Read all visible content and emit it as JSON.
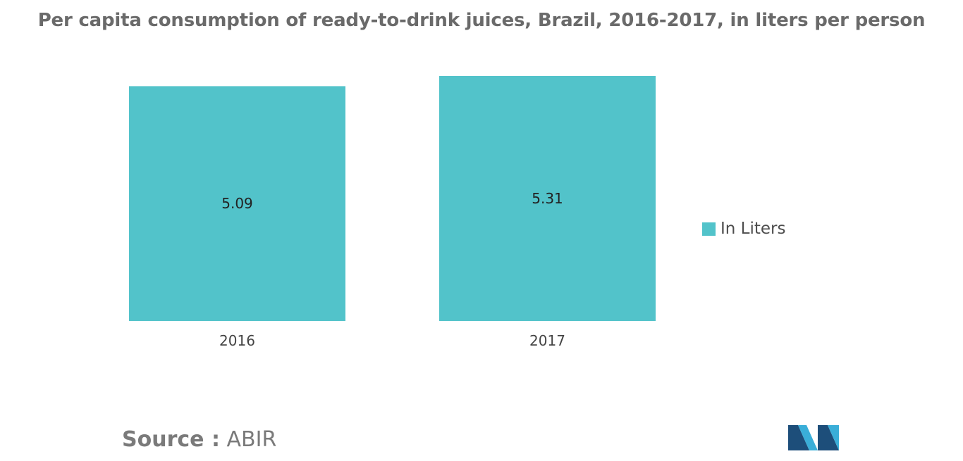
{
  "title": "Per capita consumption of ready-to-drink juices, Brazil, 2016-2017, in liters per person",
  "chart_data": {
    "type": "bar",
    "categories": [
      "2016",
      "2017"
    ],
    "series": [
      {
        "name": "In Liters",
        "values": [
          5.09,
          5.31
        ],
        "color": "#52c3ca"
      }
    ],
    "data_labels": [
      "5.09",
      "5.31"
    ],
    "xlabel": "",
    "ylabel": "",
    "ylim": [
      0,
      5.31
    ],
    "grid": false,
    "legend_position": "right"
  },
  "legend": {
    "label": "In Liters",
    "color": "#52c3ca"
  },
  "source": {
    "label": "Source :",
    "value": "ABIR"
  },
  "logo": {
    "name": "brand-logo",
    "colors": [
      "#1d4e7a",
      "#3aaed8"
    ]
  }
}
